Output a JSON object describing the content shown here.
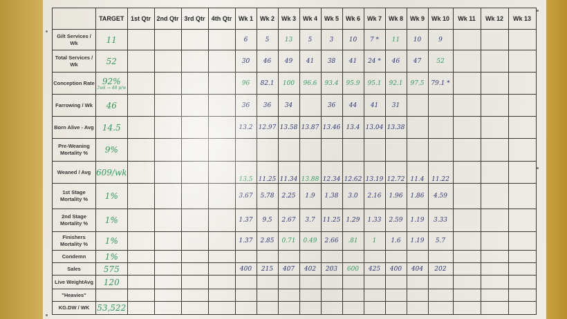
{
  "header": {
    "label": "",
    "target": "TARGET",
    "columns": [
      "1st Qtr",
      "2nd Qtr",
      "3rd Qtr",
      "4th Qtr",
      "Wk 1",
      "Wk 2",
      "Wk 3",
      "Wk 4",
      "Wk 5",
      "Wk 6",
      "Wk 7",
      "Wk 8",
      "Wk 9",
      "Wk 10",
      "Wk 11",
      "Wk 12",
      "Wk 13"
    ]
  },
  "ink_colors": {
    "green": "#2f9a5d",
    "blue": "#2b3577"
  },
  "rows": [
    {
      "label": "Gilt Services / Wk",
      "target": "11",
      "weeks": [
        [
          "6",
          "b"
        ],
        [
          "5",
          "b"
        ],
        [
          "13",
          "g"
        ],
        [
          "5",
          "b"
        ],
        [
          "3",
          "b"
        ],
        [
          "10",
          "b"
        ],
        [
          "7 *",
          "b"
        ],
        [
          "11",
          "g"
        ],
        [
          "10",
          "b"
        ],
        [
          "9",
          "b"
        ]
      ]
    },
    {
      "label": "Total Services / Wk",
      "target": "52",
      "weeks": [
        [
          "30",
          "b"
        ],
        [
          "46",
          "b"
        ],
        [
          "49",
          "b"
        ],
        [
          "41",
          "b"
        ],
        [
          "38",
          "b"
        ],
        [
          "41",
          "b"
        ],
        [
          "24 *",
          "b"
        ],
        [
          "46",
          "b"
        ],
        [
          "47",
          "b"
        ],
        [
          "52",
          "g"
        ]
      ]
    },
    {
      "label": "Conception Rate",
      "target": "92%",
      "target_note": "3wk → 48 p/w",
      "weeks": [
        [
          "96",
          "g"
        ],
        [
          "82.1",
          "b"
        ],
        [
          "100",
          "g"
        ],
        [
          "96.6",
          "g"
        ],
        [
          "93.4",
          "g"
        ],
        [
          "95.9",
          "g"
        ],
        [
          "95.1",
          "g"
        ],
        [
          "92.1",
          "g"
        ],
        [
          "97.5",
          "g"
        ],
        [
          "79.1 *",
          "b"
        ]
      ]
    },
    {
      "label": "Farrowing / Wk",
      "target": "46",
      "weeks": [
        [
          "36",
          "b"
        ],
        [
          "36",
          "b"
        ],
        [
          "34",
          "b"
        ],
        [
          "",
          ""
        ],
        [
          "36",
          "b"
        ],
        [
          "44",
          "b"
        ],
        [
          "41",
          "b"
        ],
        [
          "31",
          "b"
        ]
      ]
    },
    {
      "label": "Born Alive - Avg",
      "target": "14.5",
      "weeks": [
        [
          "13.2",
          "b"
        ],
        [
          "12.97",
          "b"
        ],
        [
          "13.58",
          "b"
        ],
        [
          "13.87",
          "b"
        ],
        [
          "13.46",
          "b"
        ],
        [
          "13.4",
          "b"
        ],
        [
          "13.04",
          "b"
        ],
        [
          "13.38",
          "b"
        ]
      ]
    },
    {
      "label": "Pre-Weaning Mortality %",
      "target": "9%",
      "weeks": []
    },
    {
      "label": "Weaned / Avg",
      "target": "609/wk",
      "weeks": [
        [
          "13.5",
          "g"
        ],
        [
          "11.25",
          "b"
        ],
        [
          "11.34",
          "b"
        ],
        [
          "13.88",
          "g"
        ],
        [
          "12.34",
          "b"
        ],
        [
          "12.62",
          "b"
        ],
        [
          "13.19",
          "b"
        ],
        [
          "12.72",
          "b"
        ],
        [
          "11.4",
          "b"
        ],
        [
          "11.22",
          "b"
        ]
      ]
    },
    {
      "label": "1st Stage Mortality %",
      "target": "1%",
      "weeks": [
        [
          "3.67",
          "b"
        ],
        [
          "5.78",
          "b"
        ],
        [
          "2.25",
          "b"
        ],
        [
          "1.9",
          "b"
        ],
        [
          "1.38",
          "b"
        ],
        [
          "3.0",
          "b"
        ],
        [
          "2.16",
          "b"
        ],
        [
          "1.96",
          "b"
        ],
        [
          "1.86",
          "b"
        ],
        [
          "4.59",
          "b"
        ]
      ]
    },
    {
      "label": "2nd Stage Mortality %",
      "target": "1%",
      "weeks": [
        [
          "1.37",
          "b"
        ],
        [
          "9.5",
          "b"
        ],
        [
          "2.67",
          "b"
        ],
        [
          "3.7",
          "b"
        ],
        [
          "11.25",
          "b"
        ],
        [
          "1.29",
          "b"
        ],
        [
          "1.33",
          "b"
        ],
        [
          "2.59",
          "b"
        ],
        [
          "1.19",
          "b"
        ],
        [
          "3.33",
          "b"
        ]
      ]
    },
    {
      "label": "Finishers Mortality %",
      "target": "1%",
      "weeks": [
        [
          "1.37",
          "b"
        ],
        [
          "2.85",
          "b"
        ],
        [
          "0.71",
          "g"
        ],
        [
          "0.49",
          "g"
        ],
        [
          "2.66",
          "b"
        ],
        [
          ".81",
          "g"
        ],
        [
          "1",
          "g"
        ],
        [
          "1.6",
          "b"
        ],
        [
          "1.19",
          "b"
        ],
        [
          "5.7",
          "b"
        ]
      ]
    },
    {
      "label": "Condemn",
      "target": "1%",
      "weeks": []
    },
    {
      "label": "Sales",
      "target": "575",
      "weeks": [
        [
          "400",
          "b"
        ],
        [
          "215",
          "b"
        ],
        [
          "407",
          "b"
        ],
        [
          "402",
          "b"
        ],
        [
          "203",
          "b"
        ],
        [
          "600",
          "g"
        ],
        [
          "425",
          "b"
        ],
        [
          "400",
          "b"
        ],
        [
          "404",
          "b"
        ],
        [
          "202",
          "b"
        ]
      ]
    },
    {
      "label": "Live WeightAvg",
      "target": "120",
      "weeks": []
    },
    {
      "label": "\"Heavies\"",
      "target": "",
      "weeks": []
    },
    {
      "label": "KG.DW / WK",
      "target": "53,522",
      "weeks": []
    }
  ]
}
